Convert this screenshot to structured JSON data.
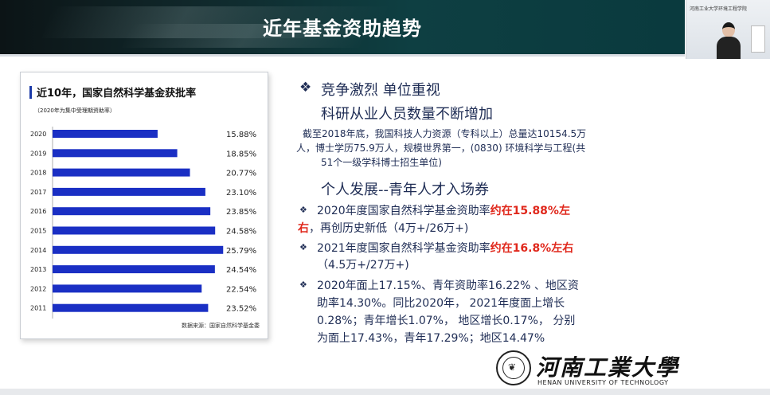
{
  "banner": {
    "title": "近年基金资助趋势"
  },
  "webcam": {
    "caption": "河南工业大学环境工程学院"
  },
  "chart_card": {
    "title": "近10年，国家自然科学基金获批率",
    "subtitle": "（2020年为集中受理期资助率）",
    "source": "数据来源：国家自然科学基金委"
  },
  "chart_data": {
    "type": "bar",
    "orientation": "horizontal",
    "title": "近10年，国家自然科学基金获批率",
    "categories": [
      "2020",
      "2019",
      "2018",
      "2017",
      "2016",
      "2015",
      "2014",
      "2013",
      "2012",
      "2011"
    ],
    "values": [
      15.88,
      18.85,
      20.77,
      23.1,
      23.85,
      24.58,
      25.79,
      24.54,
      22.54,
      23.52
    ],
    "labels": [
      "15.88%",
      "18.85%",
      "20.77%",
      "23.10%",
      "23.85%",
      "24.58%",
      "25.79%",
      "24.54%",
      "22.54%",
      "23.52%"
    ],
    "xlim": [
      0,
      26
    ],
    "grid": false,
    "bar_color": "#1a2fc4"
  },
  "content": {
    "section1_title": "竞争激烈  单位重视",
    "section1_sub": "科研从业人员数量不断增加",
    "para1": [
      "截至2018年底，我国科技人力资源（专科以上）总量达10154.5万",
      "人，博士学历75.9万人，规模世界第一，(0830) 环境科学与工程(共",
      "51个一级学科博士招生单位)"
    ],
    "section2_title": "个人发展--青年人才入场券",
    "bullet1": {
      "a": "2020年度国家自然科学基金资助率",
      "b": "约在15.88%左",
      "c": "右",
      "d": "，再创历史新低（4万+/26万+)"
    },
    "bullet2": {
      "a": "2021年度国家自然科学基金资助率",
      "b": "约在16.8%左右",
      "c": "（4.5万+/27万+)"
    },
    "bullet3": [
      "2020年面上17.15%、青年资助率16.22% 、地区资",
      "助率14.30%。同比2020年， 2021年度面上增长",
      "0.28%；青年增长1.07%， 地区增长0.17%， 分别",
      "为面上17.43%，青年17.29%；地区14.47%"
    ]
  },
  "logo": {
    "name_cn": "河南工業大學",
    "name_en": "HENAN UNIVERSITY OF TECHNOLOGY"
  }
}
